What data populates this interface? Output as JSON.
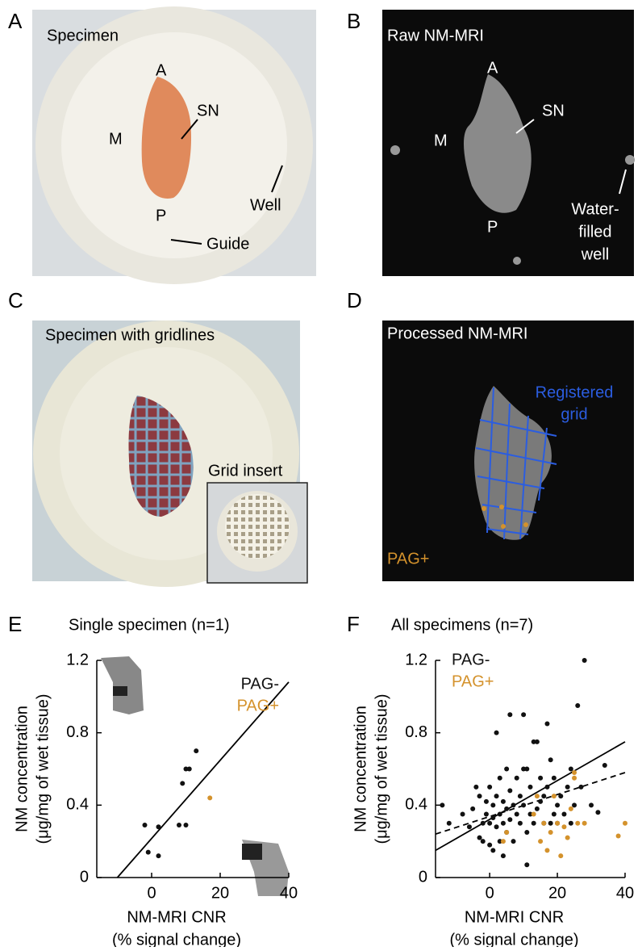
{
  "panels": [
    {
      "label": "A",
      "texts": [
        "Specimen",
        "A",
        "SN",
        "M",
        "Well",
        "P",
        "Guide"
      ]
    },
    {
      "label": "B",
      "texts": [
        "Raw NM-MRI",
        "A",
        "SN",
        "M",
        "P",
        "Water-",
        "filled",
        "well"
      ]
    },
    {
      "label": "C",
      "texts": [
        "Specimen with gridlines",
        "Grid insert"
      ]
    },
    {
      "label": "D",
      "texts": [
        "Processed NM-MRI",
        "Registered",
        "grid",
        "PAG+"
      ]
    }
  ],
  "chart_data": [
    {
      "type": "scatter",
      "panel_label": "E",
      "title": "Single specimen (n=1)",
      "x_label": [
        "NM-MRI CNR",
        "(% signal change)"
      ],
      "y_label": [
        "NM concentration",
        "(μg/mg of wet tissue)"
      ],
      "xlim": [
        -16,
        40
      ],
      "ylim": [
        0,
        1.2
      ],
      "xticks": [
        0,
        20,
        40
      ],
      "yticks": [
        0,
        0.4,
        0.8,
        1.2
      ],
      "legend_position": "upper right",
      "series": [
        {
          "name": "PAG-",
          "color": "#111111",
          "x": [
            -2,
            -1,
            2,
            2,
            8,
            10,
            9,
            10,
            11,
            13
          ],
          "values": [
            0.29,
            0.14,
            0.28,
            0.12,
            0.29,
            0.29,
            0.52,
            0.6,
            0.6,
            0.7
          ]
        },
        {
          "name": "PAG+",
          "color": "#d4922c",
          "x": [
            17
          ],
          "values": [
            0.44
          ]
        }
      ],
      "trend_lines": [
        {
          "style": "solid",
          "x": [
            -10,
            40
          ],
          "values": [
            0,
            1.08
          ]
        }
      ]
    },
    {
      "type": "scatter",
      "panel_label": "F",
      "title": "All specimens (n=7)",
      "x_label": [
        "NM-MRI CNR",
        "(% signal change)"
      ],
      "y_label": [
        "NM concentration",
        "(μg/mg of wet tissue)"
      ],
      "xlim": [
        -16,
        40
      ],
      "ylim": [
        0,
        1.2
      ],
      "xticks": [
        0,
        20,
        40
      ],
      "yticks": [
        0,
        0.4,
        0.8,
        1.2
      ],
      "legend_position": "upper left",
      "series": [
        {
          "name": "PAG-",
          "color": "#111111",
          "x": [
            -14,
            -12,
            -8,
            -6,
            -5,
            -4,
            -3,
            -2,
            -2,
            -1,
            -1,
            0,
            0,
            0,
            1,
            1,
            2,
            2,
            2,
            3,
            3,
            3,
            4,
            4,
            5,
            5,
            5,
            6,
            6,
            6,
            7,
            7,
            8,
            8,
            9,
            9,
            10,
            10,
            10,
            11,
            11,
            11,
            12,
            12,
            13,
            13,
            14,
            14,
            15,
            15,
            16,
            16,
            17,
            17,
            18,
            18,
            19,
            19,
            20,
            20,
            21,
            22,
            23,
            24,
            24,
            25,
            26,
            27,
            28,
            30,
            32,
            34,
            -3,
            1,
            4
          ],
          "values": [
            0.4,
            0.3,
            0.35,
            0.28,
            0.38,
            0.5,
            0.45,
            0.3,
            0.2,
            0.35,
            0.42,
            0.3,
            0.5,
            0.18,
            0.33,
            0.4,
            0.28,
            0.8,
            0.45,
            0.35,
            0.2,
            0.55,
            0.3,
            0.42,
            0.25,
            0.6,
            0.38,
            0.9,
            0.48,
            0.32,
            0.4,
            0.2,
            0.35,
            0.55,
            0.3,
            0.45,
            0.9,
            0.6,
            0.4,
            0.6,
            0.25,
            0.07,
            0.35,
            0.5,
            0.3,
            0.75,
            0.75,
            0.38,
            0.55,
            0.42,
            0.3,
            0.45,
            0.85,
            0.5,
            0.3,
            0.65,
            0.35,
            0.55,
            0.4,
            0.3,
            0.45,
            0.35,
            0.5,
            0.6,
            0.3,
            0.4,
            0.95,
            0.5,
            1.2,
            0.4,
            0.36,
            0.62,
            0.22,
            0.15,
            0.12
          ]
        },
        {
          "name": "PAG+",
          "color": "#d4922c",
          "x": [
            4,
            5,
            13,
            14,
            15,
            16,
            17,
            18,
            19,
            20,
            21,
            22,
            23,
            24,
            25,
            25,
            26,
            38,
            40,
            28
          ],
          "values": [
            0.2,
            0.25,
            0.35,
            0.45,
            0.2,
            0.3,
            0.15,
            0.25,
            0.45,
            0.3,
            0.12,
            0.28,
            0.22,
            0.38,
            0.55,
            0.58,
            0.3,
            0.23,
            0.3,
            0.3
          ]
        }
      ],
      "trend_lines": [
        {
          "style": "solid",
          "x": [
            -16,
            40
          ],
          "values": [
            0.15,
            0.75
          ]
        },
        {
          "style": "dashed",
          "x": [
            -16,
            40
          ],
          "values": [
            0.24,
            0.58
          ]
        }
      ]
    }
  ]
}
